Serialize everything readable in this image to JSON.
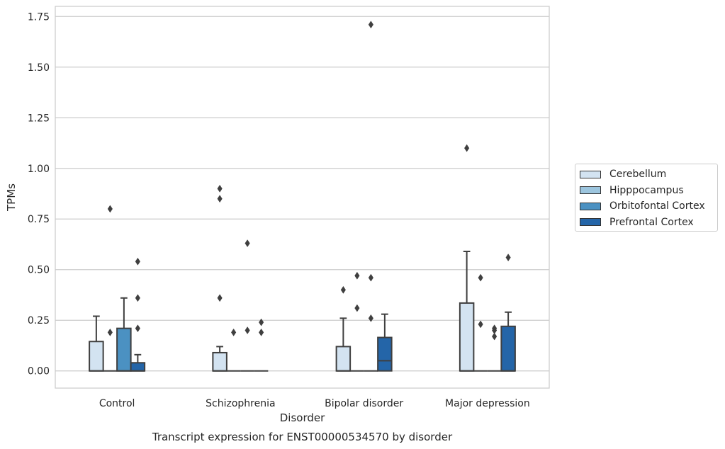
{
  "chart_data": {
    "type": "box",
    "title": "",
    "caption": "Transcript expression for ENST00000534570 by disorder",
    "xlabel": "Disorder",
    "ylabel": "TPMs",
    "ylim": [
      -0.085,
      1.8
    ],
    "yticks": [
      0.0,
      0.25,
      0.5,
      0.75,
      1.0,
      1.25,
      1.5,
      1.75
    ],
    "ytick_labels": [
      "0.00",
      "0.25",
      "0.50",
      "0.75",
      "1.00",
      "1.25",
      "1.50",
      "1.75"
    ],
    "grid": true,
    "legend_position": "right",
    "categories": [
      "Control",
      "Schizophrenia",
      "Bipolar disorder",
      "Major depression"
    ],
    "series": [
      {
        "name": "Cerebellum",
        "color": "#d3e3f1",
        "boxes": [
          {
            "q1": 0.0,
            "median": 0.0,
            "q3": 0.145,
            "whisker_low": 0.0,
            "whisker_high": 0.27,
            "outliers": []
          },
          {
            "q1": 0.0,
            "median": 0.0,
            "q3": 0.09,
            "whisker_low": 0.0,
            "whisker_high": 0.12,
            "outliers": [
              0.36,
              0.85,
              0.9
            ]
          },
          {
            "q1": 0.0,
            "median": 0.0,
            "q3": 0.12,
            "whisker_low": 0.0,
            "whisker_high": 0.26,
            "outliers": [
              0.4
            ]
          },
          {
            "q1": 0.0,
            "median": 0.0,
            "q3": 0.335,
            "whisker_low": 0.0,
            "whisker_high": 0.59,
            "outliers": [
              1.1
            ]
          }
        ]
      },
      {
        "name": "Hipppocampus",
        "color": "#9cc5de",
        "boxes": [
          {
            "q1": 0.0,
            "median": 0.0,
            "q3": 0.0,
            "whisker_low": 0.0,
            "whisker_high": 0.0,
            "outliers": [
              0.19,
              0.8
            ]
          },
          {
            "q1": 0.0,
            "median": 0.0,
            "q3": 0.0,
            "whisker_low": 0.0,
            "whisker_high": 0.0,
            "outliers": [
              0.19
            ]
          },
          {
            "q1": 0.0,
            "median": 0.0,
            "q3": 0.0,
            "whisker_low": 0.0,
            "whisker_high": 0.0,
            "outliers": [
              0.31,
              0.47
            ]
          },
          {
            "q1": 0.0,
            "median": 0.0,
            "q3": 0.0,
            "whisker_low": 0.0,
            "whisker_high": 0.0,
            "outliers": [
              0.23,
              0.46
            ]
          }
        ]
      },
      {
        "name": "Orbitofontal Cortex",
        "color": "#4b91c2",
        "boxes": [
          {
            "q1": 0.0,
            "median": 0.0,
            "q3": 0.21,
            "whisker_low": 0.0,
            "whisker_high": 0.36,
            "outliers": []
          },
          {
            "q1": 0.0,
            "median": 0.0,
            "q3": 0.0,
            "whisker_low": 0.0,
            "whisker_high": 0.0,
            "outliers": [
              0.2,
              0.63
            ]
          },
          {
            "q1": 0.0,
            "median": 0.0,
            "q3": 0.0,
            "whisker_low": 0.0,
            "whisker_high": 0.0,
            "outliers": [
              0.26,
              0.46,
              1.71
            ]
          },
          {
            "q1": 0.0,
            "median": 0.0,
            "q3": 0.0,
            "whisker_low": 0.0,
            "whisker_high": 0.0,
            "outliers": [
              0.17,
              0.2,
              0.21
            ]
          }
        ]
      },
      {
        "name": "Prefrontal Cortex",
        "color": "#2465a8",
        "boxes": [
          {
            "q1": 0.0,
            "median": 0.0,
            "q3": 0.04,
            "whisker_low": 0.0,
            "whisker_high": 0.08,
            "outliers": [
              0.21,
              0.36,
              0.54
            ]
          },
          {
            "q1": 0.0,
            "median": 0.0,
            "q3": 0.0,
            "whisker_low": 0.0,
            "whisker_high": 0.0,
            "outliers": [
              0.19,
              0.24
            ]
          },
          {
            "q1": 0.0,
            "median": 0.05,
            "q3": 0.165,
            "whisker_low": 0.0,
            "whisker_high": 0.28,
            "outliers": []
          },
          {
            "q1": 0.0,
            "median": 0.0,
            "q3": 0.22,
            "whisker_low": 0.0,
            "whisker_high": 0.29,
            "outliers": [
              0.56
            ]
          }
        ]
      }
    ]
  }
}
